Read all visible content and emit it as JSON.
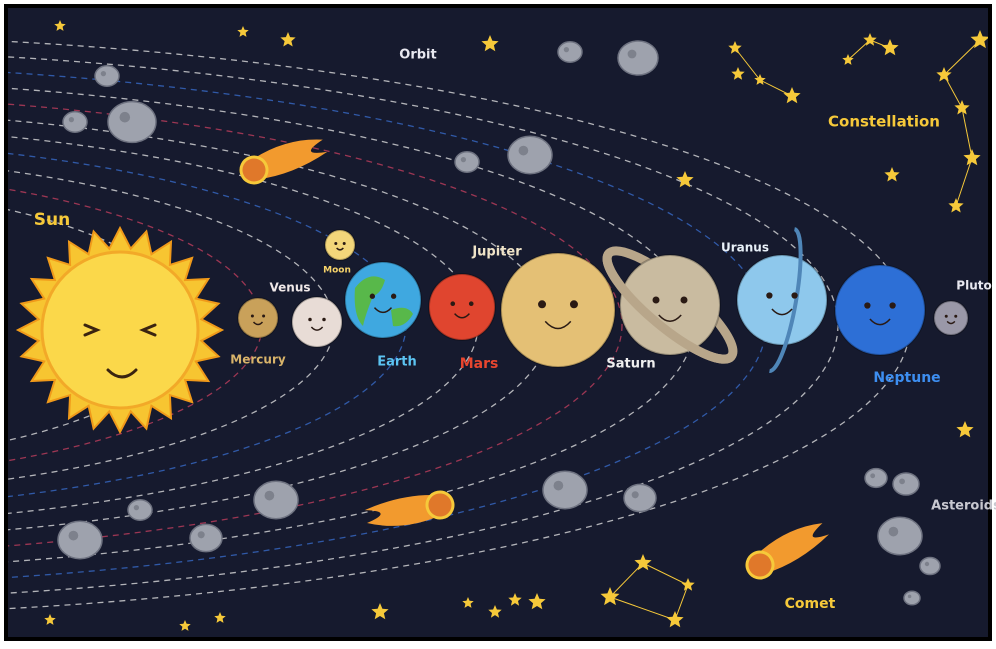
{
  "labels": {
    "orbit": "Orbit",
    "sun": "Sun",
    "mercury": "Mercury",
    "venus": "Venus",
    "moon": "Moon",
    "earth": "Earth",
    "mars": "Mars",
    "jupiter": "Jupiter",
    "saturn": "Saturn",
    "uranus": "Uranus",
    "neptune": "Neptune",
    "pluto": "Pluto",
    "constellation": "Constellation",
    "asteroids": "Asteroids",
    "comet": "Comet"
  }
}
